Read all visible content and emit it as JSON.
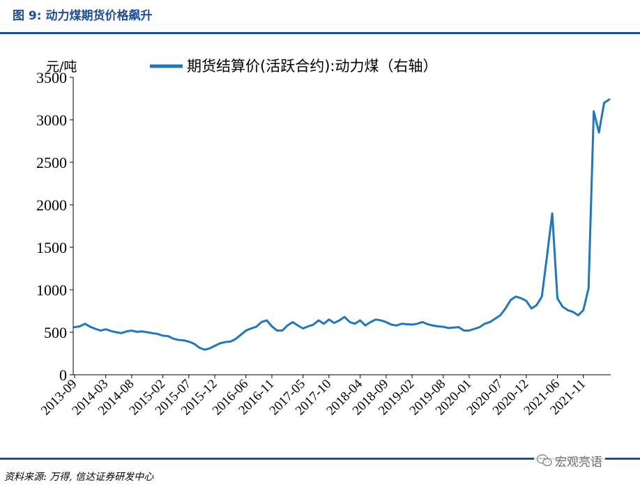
{
  "figure": {
    "title": "图 9: 动力煤期货价格飙升",
    "source": "资料来源: 万得, 信达证券研发中心",
    "watermark": "宏观亮语"
  },
  "chart_data": {
    "type": "line",
    "title": "图 9: 动力煤期货价格飙升",
    "ylabel": "元/吨",
    "xlabel": "",
    "ylim": [
      0,
      3500
    ],
    "yticks": [
      0,
      500,
      1000,
      1500,
      2000,
      2500,
      3000,
      3500
    ],
    "xticks": [
      "2013-09",
      "2014-03",
      "2014-08",
      "2015-02",
      "2015-07",
      "2015-12",
      "2016-06",
      "2016-11",
      "2017-05",
      "2017-10",
      "2018-04",
      "2018-09",
      "2019-02",
      "2019-08",
      "2020-01",
      "2020-07",
      "2020-12",
      "2021-06",
      "2021-11"
    ],
    "grid": false,
    "legend_position": "top",
    "color": "#1f77c0",
    "series": [
      {
        "name": "期货结算价(活跃合约):动力煤（右轴）",
        "x": [
          "2013-09",
          "2013-10",
          "2013-11",
          "2013-12",
          "2014-01",
          "2014-02",
          "2014-03",
          "2014-04",
          "2014-05",
          "2014-06",
          "2014-07",
          "2014-08",
          "2014-09",
          "2014-10",
          "2014-11",
          "2014-12",
          "2015-01",
          "2015-02",
          "2015-03",
          "2015-04",
          "2015-05",
          "2015-06",
          "2015-07",
          "2015-08",
          "2015-09",
          "2015-10",
          "2015-11",
          "2015-12",
          "2016-01",
          "2016-02",
          "2016-03",
          "2016-04",
          "2016-05",
          "2016-06",
          "2016-07",
          "2016-08",
          "2016-09",
          "2016-10",
          "2016-11",
          "2016-12",
          "2017-01",
          "2017-02",
          "2017-03",
          "2017-04",
          "2017-05",
          "2017-06",
          "2017-07",
          "2017-08",
          "2017-09",
          "2017-10",
          "2017-11",
          "2017-12",
          "2018-01",
          "2018-02",
          "2018-03",
          "2018-04",
          "2018-05",
          "2018-06",
          "2018-07",
          "2018-08",
          "2018-09",
          "2018-10",
          "2018-11",
          "2018-12",
          "2019-01",
          "2019-02",
          "2019-03",
          "2019-04",
          "2019-05",
          "2019-06",
          "2019-07",
          "2019-08",
          "2019-09",
          "2019-10",
          "2019-11",
          "2019-12",
          "2020-01",
          "2020-02",
          "2020-03",
          "2020-04",
          "2020-05",
          "2020-06",
          "2020-07",
          "2020-08",
          "2020-09",
          "2020-10",
          "2020-11",
          "2020-12",
          "2021-01",
          "2021-02",
          "2021-03",
          "2021-04",
          "2021-05",
          "2021-06",
          "2021-07",
          "2021-08",
          "2021-09",
          "2021-10",
          "2021-11",
          "2021-12",
          "2022-01",
          "2022-02",
          "2022-03",
          "2022-04"
        ],
        "values": [
          560,
          570,
          600,
          565,
          540,
          520,
          535,
          515,
          500,
          490,
          510,
          520,
          505,
          510,
          500,
          490,
          480,
          460,
          455,
          425,
          410,
          405,
          390,
          365,
          320,
          295,
          310,
          340,
          370,
          385,
          390,
          420,
          470,
          520,
          545,
          565,
          620,
          640,
          570,
          520,
          520,
          580,
          620,
          580,
          545,
          570,
          590,
          640,
          600,
          650,
          610,
          640,
          680,
          620,
          600,
          640,
          580,
          620,
          650,
          640,
          620,
          590,
          580,
          600,
          595,
          590,
          600,
          620,
          595,
          580,
          570,
          565,
          550,
          555,
          560,
          520,
          520,
          540,
          560,
          600,
          620,
          660,
          700,
          780,
          880,
          920,
          900,
          870,
          780,
          820,
          920,
          1400,
          1900,
          900,
          800,
          760,
          740,
          700,
          760,
          1020,
          3100,
          2850,
          3200,
          3240
        ]
      }
    ]
  }
}
